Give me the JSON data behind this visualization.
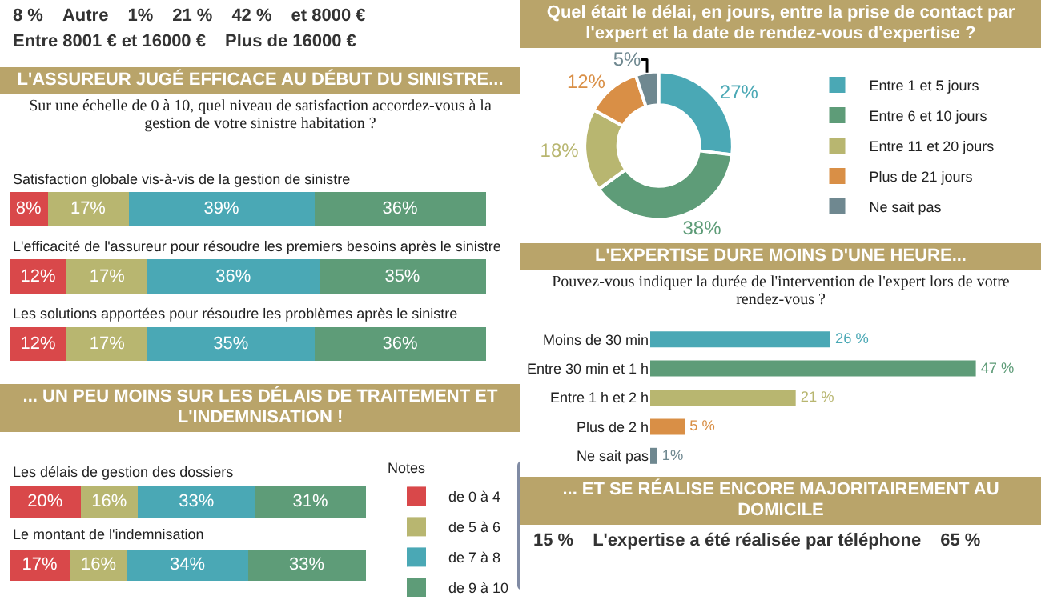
{
  "chart_data": [
    {
      "type": "other",
      "annotations": [
        "8 %",
        "Autre",
        "1%",
        "21 %",
        "42 %",
        "et 8000 €",
        "Entre 8001 € et 16000 €",
        "Plus de 16000 €"
      ]
    },
    {
      "type": "bar",
      "orientation": "horizontal",
      "stacked": true,
      "title": "L'ASSUREUR JUGÉ EFFICACE AU DÉBUT DU SINISTRE...",
      "subtitle": "Sur une échelle de 0 à 10, quel niveau de satisfaction accordez-vous à la gestion de votre sinistre habitation ?",
      "categories": [
        "Satisfaction globale vis-à-vis de la gestion de sinistre",
        "L'efficacité de l'assureur pour résoudre les premiers besoins après le sinistre",
        "Les solutions apportées pour résoudre les problèmes après le sinistre"
      ],
      "series": [
        {
          "color": "#d9484a",
          "values": [
            8,
            12,
            12
          ],
          "value_labels": [
            "8%",
            "12%",
            "12%"
          ]
        },
        {
          "color": "#b8b670",
          "values": [
            17,
            17,
            17
          ],
          "value_labels": [
            "17%",
            "17%",
            "17%"
          ]
        },
        {
          "color": "#4aa8b5",
          "values": [
            39,
            36,
            35
          ],
          "value_labels": [
            "39%",
            "36%",
            "35%"
          ]
        },
        {
          "color": "#5e9c78",
          "values": [
            36,
            35,
            36
          ],
          "value_labels": [
            "36%",
            "35%",
            "36%"
          ]
        }
      ],
      "legend": false
    },
    {
      "type": "bar",
      "orientation": "horizontal",
      "stacked": true,
      "title": "... UN PEU MOINS SUR LES DÉLAIS DE TRAITEMENT ET L'INDEMNISATION !",
      "legend_title": "Notes",
      "categories": [
        "Les délais de gestion des dossiers",
        "Le montant de l'indemnisation"
      ],
      "series": [
        {
          "name": "de 0 à 4",
          "color": "#d9484a",
          "values": [
            20,
            17
          ],
          "value_labels": [
            "20%",
            "17%"
          ]
        },
        {
          "name": "de 5 à 6",
          "color": "#b8b670",
          "values": [
            16,
            16
          ],
          "value_labels": [
            "16%",
            "16%"
          ]
        },
        {
          "name": "de 7 à 8",
          "color": "#4aa8b5",
          "values": [
            33,
            34
          ],
          "value_labels": [
            "33%",
            "34%"
          ]
        },
        {
          "name": "de 9 à 10",
          "color": "#5e9c78",
          "values": [
            31,
            33
          ],
          "value_labels": [
            "31%",
            "33%"
          ]
        }
      ],
      "legend": "right"
    },
    {
      "type": "donut",
      "title": "Quel était le délai, en jours, entre la prise de contact par l'expert et la date de rendez-vous d'expertise ?",
      "categories": [
        "Entre 1 et 5 jours",
        "Entre 6 et 10 jours",
        "Entre 11 et 20 jours",
        "Plus de 21 jours",
        "Ne sait pas"
      ],
      "values": [
        27,
        38,
        18,
        12,
        5
      ],
      "value_labels": [
        "27%",
        "38%",
        "18%",
        "12%",
        "5%"
      ],
      "colors": [
        "#4aa8b5",
        "#5e9c78",
        "#b8b670",
        "#d98f46",
        "#6f8890"
      ],
      "legend": "right"
    },
    {
      "type": "bar",
      "orientation": "horizontal",
      "title": "L'EXPERTISE DURE MOINS D'UNE HEURE...",
      "subtitle": "Pouvez-vous indiquer la durée de l'intervention de l'expert lors de votre rendez-vous ?",
      "categories": [
        "Moins de 30 min",
        "Entre 30 min et 1 h",
        "Entre 1 h et 2 h",
        "Plus de 2 h",
        "Ne sait pas"
      ],
      "values": [
        26,
        47,
        21,
        5,
        1
      ],
      "value_labels": [
        "26 %",
        "47 %",
        "21 %",
        "5 %",
        "1%"
      ],
      "colors": [
        "#4aa8b5",
        "#5e9c78",
        "#b8b670",
        "#d98f46",
        "#6f8890"
      ],
      "legend": false
    },
    {
      "type": "other",
      "title": "... ET SE RÉALISE ENCORE MAJORITAIREMENT AU DOMICILE",
      "annotations": [
        "15 %",
        "L'expertise a été réalisée par téléphone",
        "65 %"
      ]
    }
  ]
}
